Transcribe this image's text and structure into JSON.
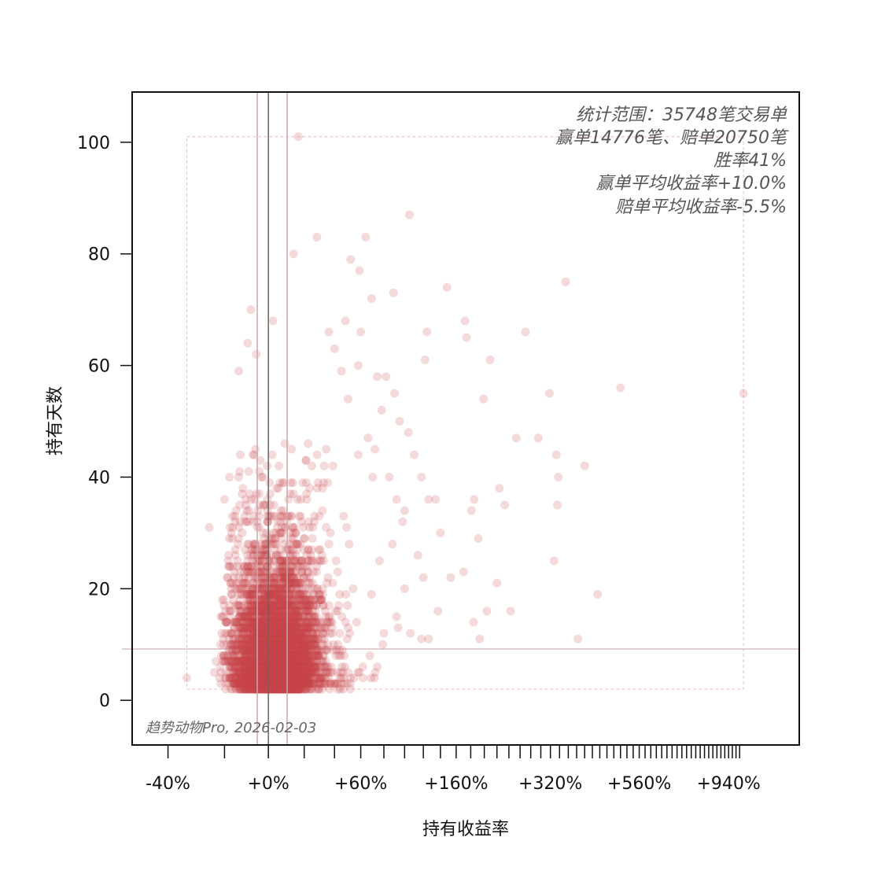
{
  "chart_data": {
    "type": "scatter",
    "xlabel": "持有收益率",
    "ylabel": "持有天数",
    "x_scale": "log(1+return)",
    "xlim": [
      -50,
      1390
    ],
    "ylim": [
      -8,
      109
    ],
    "x_tick_step": 20,
    "x_tick_range": [
      -40,
      1000
    ],
    "x_tick_labels": [
      {
        "value": -40,
        "label": "-40%"
      },
      {
        "value": 0,
        "label": "+0%"
      },
      {
        "value": 60,
        "label": "+60%"
      },
      {
        "value": 160,
        "label": "+160%"
      },
      {
        "value": 320,
        "label": "+320%"
      },
      {
        "value": 560,
        "label": "+560%"
      },
      {
        "value": 940,
        "label": "+940%"
      }
    ],
    "y_ticks": [
      {
        "value": 0,
        "label": "0"
      },
      {
        "value": 20,
        "label": "20"
      },
      {
        "value": 40,
        "label": "40"
      },
      {
        "value": 60,
        "label": "60"
      },
      {
        "value": 80,
        "label": "80"
      },
      {
        "value": 100,
        "label": "100"
      }
    ],
    "grid": false,
    "point_color": "#c8464b",
    "reference_lines": {
      "vertical": [
        {
          "value": 0,
          "color": "#666666"
        },
        {
          "value": -5.5,
          "color": "#c9a9ad"
        },
        {
          "value": 10.0,
          "color": "#c9a9ad"
        }
      ],
      "horizontal": [
        {
          "value": 9.2,
          "color": "#d9bfc3"
        }
      ]
    },
    "data_range_box": {
      "x": [
        -34,
        1022
      ],
      "y": [
        2,
        101
      ],
      "color": "#f2b8bd"
    },
    "annotations": [
      "统计范围：35748笔交易单",
      "赢单14776笔、赔单20750笔",
      "胜率41%",
      "赢单平均收益率+10.0%",
      "赔单平均收益率-5.5%"
    ],
    "watermark": "趋势动物Pro, 2026-02-03",
    "sampled_points": [
      [
        16.5,
        101
      ],
      [
        28,
        83
      ],
      [
        13.7,
        80
      ],
      [
        64,
        83
      ],
      [
        105,
        87
      ],
      [
        52,
        79
      ],
      [
        59,
        77
      ],
      [
        69,
        72
      ],
      [
        89,
        73
      ],
      [
        148,
        74
      ],
      [
        354,
        75
      ],
      [
        -8.5,
        70
      ],
      [
        2.4,
        68
      ],
      [
        48,
        68
      ],
      [
        172,
        68
      ],
      [
        174,
        65
      ],
      [
        270,
        66
      ],
      [
        124,
        66
      ],
      [
        209,
        61
      ],
      [
        122,
        61
      ],
      [
        500,
        56
      ],
      [
        318,
        55
      ],
      [
        1022,
        55
      ],
      [
        199,
        54
      ],
      [
        253,
        47
      ],
      [
        295,
        47
      ],
      [
        333,
        44
      ],
      [
        337,
        40
      ],
      [
        400,
        42
      ],
      [
        335,
        35
      ],
      [
        224,
        38
      ],
      [
        233,
        35
      ],
      [
        185,
        36
      ],
      [
        181,
        34
      ],
      [
        191,
        29
      ],
      [
        328,
        25
      ],
      [
        220,
        21
      ],
      [
        434,
        19
      ],
      [
        383,
        11
      ],
      [
        243,
        16
      ],
      [
        204,
        16
      ],
      [
        137,
        16
      ],
      [
        184,
        14
      ],
      [
        193,
        11
      ],
      [
        153,
        22
      ],
      [
        170,
        23
      ],
      [
        -26,
        31
      ],
      [
        -34,
        4
      ],
      [
        60,
        66
      ],
      [
        74,
        58
      ],
      [
        82,
        58
      ],
      [
        95,
        50
      ],
      [
        104,
        48
      ],
      [
        110,
        44
      ],
      [
        118,
        40
      ],
      [
        126,
        36
      ],
      [
        134,
        36
      ],
      [
        140,
        30
      ],
      [
        98,
        32
      ],
      [
        88,
        28
      ],
      [
        76,
        25
      ],
      [
        114,
        26
      ],
      [
        120,
        22
      ],
      [
        100,
        20
      ],
      [
        92,
        15
      ],
      [
        106,
        12
      ],
      [
        118,
        11
      ],
      [
        126,
        11
      ],
      [
        80,
        12
      ],
      [
        70,
        40
      ],
      [
        66,
        47
      ],
      [
        85,
        40
      ],
      [
        92,
        36
      ],
      [
        100,
        34
      ],
      [
        78,
        52
      ],
      [
        58,
        60
      ],
      [
        90,
        55
      ],
      [
        72,
        45
      ],
      [
        58,
        44
      ],
      [
        50,
        54
      ],
      [
        45,
        59
      ],
      [
        40,
        63
      ],
      [
        36,
        66
      ],
      [
        -14,
        59
      ],
      [
        -10,
        64
      ],
      [
        -6,
        62
      ],
      [
        -18,
        40
      ],
      [
        -20,
        36
      ]
    ]
  }
}
